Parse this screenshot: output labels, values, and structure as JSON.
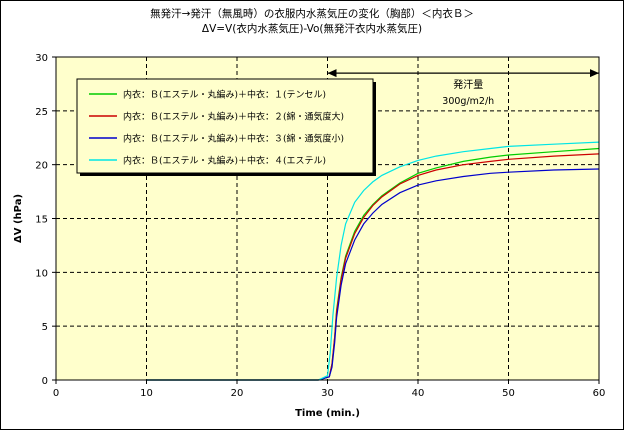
{
  "chart_data": {
    "type": "line",
    "title_line1": "無発汗→発汗（無風時）の衣服内水蒸気圧の変化（胸部）＜内衣Ｂ＞",
    "title_line2": "ΔV=V(衣内水蒸気圧)-Vo(無発汗衣内水蒸気圧)",
    "xlabel": "Time  (min.)",
    "ylabel": "ΔV  (hPa)",
    "xlim": [
      0,
      60
    ],
    "ylim": [
      0,
      30
    ],
    "xticks": [
      0,
      10,
      20,
      30,
      40,
      50,
      60
    ],
    "yticks": [
      0,
      5,
      10,
      15,
      20,
      25,
      30
    ],
    "grid": true,
    "plot_background": "#ffffcc",
    "legend_position": "top-left",
    "annotation": {
      "label": "発汗量",
      "value": "300g/m2/h",
      "x_start": 30,
      "x_end": 60,
      "y": 28.5
    },
    "series": [
      {
        "name": "内衣：Ｂ(エステル・丸編み)＋中衣：１(テンセル)",
        "color": "#00cc00",
        "x": [
          10,
          29,
          30.2,
          30.5,
          30.8,
          31,
          31.5,
          32,
          33,
          34,
          35,
          36,
          38,
          40,
          42,
          45,
          48,
          50,
          55,
          60
        ],
        "y": [
          0,
          0,
          0.3,
          1.5,
          4,
          6.5,
          9.5,
          11.5,
          13.8,
          15.3,
          16.3,
          17.1,
          18.3,
          19.2,
          19.7,
          20.3,
          20.7,
          20.9,
          21.2,
          21.5
        ]
      },
      {
        "name": "内衣：Ｂ(エステル・丸編み)＋中衣：２(綿・通気度大)",
        "color": "#cc0000",
        "x": [
          10,
          29,
          30.2,
          30.5,
          30.8,
          31,
          31.5,
          32,
          33,
          34,
          35,
          36,
          38,
          40,
          42,
          45,
          48,
          50,
          55,
          60
        ],
        "y": [
          0,
          0,
          0.3,
          1.5,
          4,
          6.3,
          9.3,
          11.3,
          13.6,
          15.1,
          16.2,
          17,
          18.2,
          19,
          19.5,
          20,
          20.3,
          20.5,
          20.8,
          21
        ]
      },
      {
        "name": "内衣：Ｂ(エステル・丸編み)＋中衣：３(綿・通気度小)",
        "color": "#0000cc",
        "x": [
          10,
          29,
          30.2,
          30.5,
          30.8,
          31,
          31.5,
          32,
          33,
          34,
          35,
          36,
          38,
          40,
          42,
          45,
          48,
          50,
          55,
          60
        ],
        "y": [
          0,
          0,
          0.3,
          1.2,
          3.5,
          5.8,
          8.8,
          10.8,
          13,
          14.5,
          15.5,
          16.3,
          17.4,
          18.1,
          18.5,
          18.9,
          19.2,
          19.3,
          19.5,
          19.6
        ]
      },
      {
        "name": "内衣：Ｂ(エステル・丸編み)＋中衣：４(エステル)",
        "color": "#00e5e5",
        "x": [
          10,
          29,
          30,
          30.3,
          30.6,
          31,
          31.5,
          32,
          33,
          34,
          35,
          36,
          38,
          40,
          42,
          45,
          48,
          50,
          55,
          60
        ],
        "y": [
          0,
          0,
          0.4,
          2.5,
          6,
          9.5,
          12.5,
          14.5,
          16.5,
          17.6,
          18.4,
          19,
          19.8,
          20.4,
          20.8,
          21.2,
          21.5,
          21.7,
          21.9,
          22.1
        ]
      }
    ]
  }
}
